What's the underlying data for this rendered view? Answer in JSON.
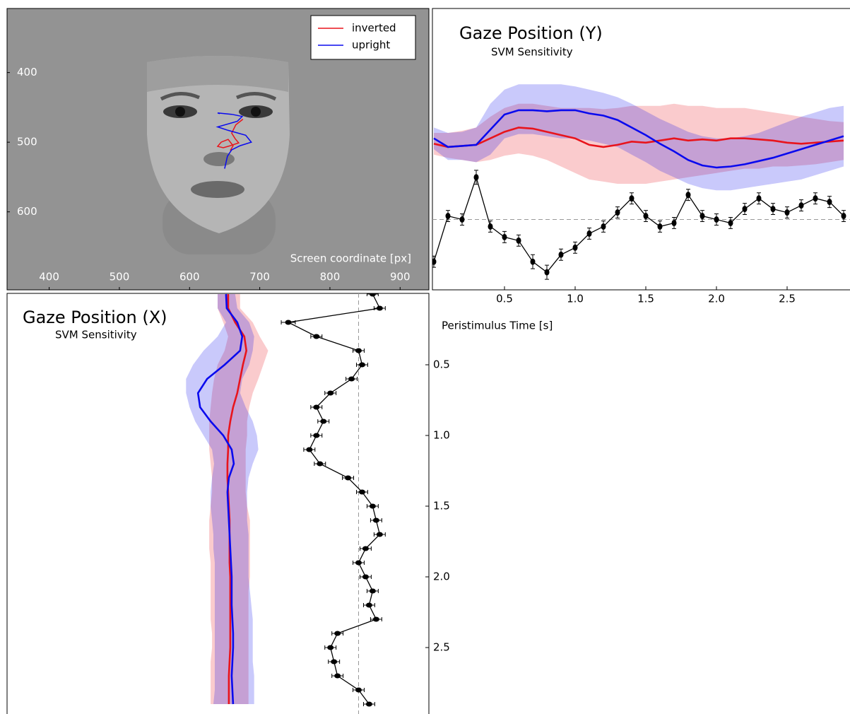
{
  "chart_data": [
    {
      "type": "line",
      "x_label": "Screen coordinate [px]",
      "xlim": [
        340,
        941
      ],
      "ylim": [
        712,
        308
      ],
      "xticks": [
        400,
        500,
        600,
        700,
        800,
        900
      ],
      "yticks": [
        400,
        500,
        600
      ],
      "legend": "upper right",
      "series": [
        {
          "name": "inverted",
          "color": "#e8141c",
          "x": [
            676,
            666,
            660,
            665,
            670,
            658,
            648,
            640,
            645,
            655,
            662,
            658
          ],
          "values": [
            467,
            475,
            487,
            495,
            501,
            505,
            508,
            506,
            500,
            496,
            505,
            512
          ]
        },
        {
          "name": "upright",
          "color": "#0a0aee",
          "x": [
            643,
            640,
            660,
            675,
            668,
            640,
            655,
            680,
            688,
            672,
            660,
            654,
            650
          ],
          "values": [
            459,
            458,
            460,
            463,
            470,
            478,
            483,
            490,
            500,
            505,
            511,
            520,
            538
          ]
        }
      ]
    },
    {
      "type": "line",
      "title": "Gaze Position (Y)",
      "subtitle": "SVM Sensitivity",
      "x_label": "Peristimulus Time [s]",
      "x": [
        0,
        0.1,
        0.2,
        0.3,
        0.4,
        0.5,
        0.6,
        0.7,
        0.8,
        0.9,
        1.0,
        1.1,
        1.2,
        1.3,
        1.4,
        1.5,
        1.6,
        1.7,
        1.8,
        1.9,
        2.0,
        2.1,
        2.2,
        2.3,
        2.4,
        2.5,
        2.6,
        2.7,
        2.8,
        2.9
      ],
      "xlim": [
        0,
        2.95
      ],
      "xticks": [
        0.5,
        {
          "value": 1,
          "label": "1.0"
        },
        1.5,
        {
          "value": 2,
          "label": "2.0"
        },
        2.5
      ],
      "ylim": [
        640,
        380
      ],
      "y2lim": [
        -1,
        3
      ],
      "reference_line": 0,
      "series": [
        {
          "color": "#e8141c",
          "values": [
            505,
            508,
            507,
            506,
            500,
            494,
            490,
            491,
            494,
            497,
            500,
            506,
            508,
            506,
            503,
            504,
            502,
            500,
            502,
            501,
            502,
            500,
            500,
            501,
            502,
            504,
            505,
            504,
            503,
            502
          ],
          "band_low": [
            495,
            495,
            493,
            490,
            480,
            472,
            468,
            468,
            470,
            472,
            472,
            472,
            473,
            472,
            470,
            470,
            470,
            468,
            470,
            470,
            472,
            472,
            472,
            474,
            476,
            478,
            480,
            482,
            484,
            485
          ],
          "band_high": [
            515,
            518,
            520,
            522,
            520,
            516,
            514,
            516,
            520,
            526,
            532,
            538,
            540,
            542,
            542,
            542,
            540,
            538,
            536,
            534,
            532,
            530,
            528,
            528,
            526,
            526,
            525,
            524,
            522,
            520
          ]
        },
        {
          "color": "#0a0aee",
          "values": [
            500,
            508,
            507,
            506,
            492,
            478,
            474,
            474,
            475,
            474,
            474,
            477,
            479,
            483,
            490,
            497,
            505,
            512,
            520,
            525,
            527,
            526,
            524,
            521,
            518,
            514,
            510,
            506,
            502,
            498
          ],
          "band_low": [
            490,
            495,
            494,
            490,
            468,
            455,
            450,
            450,
            450,
            450,
            452,
            455,
            458,
            462,
            468,
            475,
            482,
            488,
            494,
            498,
            500,
            500,
            498,
            495,
            490,
            485,
            480,
            476,
            472,
            470
          ],
          "band_high": [
            510,
            520,
            520,
            522,
            515,
            500,
            496,
            496,
            498,
            500,
            500,
            502,
            505,
            508,
            515,
            522,
            530,
            536,
            542,
            546,
            548,
            548,
            546,
            544,
            542,
            540,
            538,
            534,
            530,
            526
          ]
        },
        {
          "color": "#000000",
          "axis": "y2",
          "values": [
            -0.6,
            0.05,
            0.0,
            0.6,
            -0.1,
            -0.25,
            -0.3,
            -0.6,
            -0.75,
            -0.5,
            -0.4,
            -0.2,
            -0.1,
            0.1,
            0.3,
            0.05,
            -0.1,
            -0.05,
            0.35,
            0.05,
            0.0,
            -0.05,
            0.15,
            0.3,
            0.15,
            0.1,
            0.2,
            0.3,
            0.25,
            0.05
          ],
          "errors": [
            0.08,
            0.08,
            0.08,
            0.1,
            0.08,
            0.08,
            0.08,
            0.1,
            0.1,
            0.08,
            0.08,
            0.08,
            0.08,
            0.08,
            0.08,
            0.08,
            0.08,
            0.08,
            0.08,
            0.08,
            0.08,
            0.08,
            0.08,
            0.08,
            0.08,
            0.08,
            0.08,
            0.08,
            0.08,
            0.08
          ]
        }
      ]
    },
    {
      "type": "line",
      "orientation": "vertical",
      "title": "Gaze Position (X)",
      "subtitle": "SVM Sensitivity",
      "y": [
        0,
        0.1,
        0.2,
        0.3,
        0.4,
        0.5,
        0.6,
        0.7,
        0.8,
        0.9,
        1.0,
        1.1,
        1.2,
        1.3,
        1.4,
        1.5,
        1.6,
        1.7,
        1.8,
        1.9,
        2.0,
        2.1,
        2.2,
        2.3,
        2.4,
        2.5,
        2.6,
        2.7,
        2.8,
        2.9
      ],
      "ylim": [
        0,
        2.97
      ],
      "yticks": [
        0.5,
        {
          "value": 1,
          "label": "1.0"
        },
        1.5,
        {
          "value": 2,
          "label": "2.0"
        },
        2.5
      ],
      "xlim": [
        340,
        941
      ],
      "x2lim": [
        -5,
        1
      ],
      "reference_line": 0,
      "series": [
        {
          "color": "#e8141c",
          "values": [
            655,
            655,
            665,
            678,
            681,
            676,
            672,
            668,
            662,
            658,
            655,
            655,
            654,
            654,
            655,
            656,
            657,
            657,
            657,
            657,
            658,
            658,
            658,
            658,
            658,
            658,
            657,
            656,
            656,
            656
          ],
          "band_low": [
            640,
            640,
            648,
            655,
            650,
            640,
            635,
            632,
            630,
            628,
            628,
            628,
            630,
            632,
            632,
            630,
            628,
            628,
            628,
            630,
            630,
            630,
            630,
            630,
            632,
            632,
            630,
            630,
            630,
            630
          ],
          "band_high": [
            672,
            672,
            690,
            700,
            712,
            705,
            698,
            690,
            685,
            682,
            682,
            680,
            680,
            680,
            680,
            682,
            686,
            686,
            686,
            686,
            686,
            684,
            684,
            684,
            684,
            684,
            684,
            684,
            684,
            684
          ]
        },
        {
          "color": "#0a0aee",
          "values": [
            652,
            653,
            668,
            675,
            672,
            650,
            625,
            612,
            615,
            630,
            648,
            660,
            663,
            656,
            654,
            655,
            656,
            657,
            658,
            659,
            660,
            660,
            660,
            661,
            662,
            662,
            661,
            660,
            661,
            662
          ],
          "band_low": [
            640,
            640,
            652,
            640,
            620,
            605,
            595,
            595,
            600,
            608,
            620,
            632,
            635,
            632,
            630,
            630,
            632,
            634,
            634,
            636,
            636,
            636,
            636,
            636,
            636,
            636,
            636,
            636,
            636,
            634
          ],
          "band_high": [
            665,
            668,
            685,
            692,
            690,
            685,
            675,
            672,
            680,
            690,
            696,
            698,
            690,
            684,
            682,
            682,
            682,
            684,
            684,
            684,
            684,
            686,
            688,
            690,
            690,
            690,
            690,
            692,
            692,
            692
          ]
        },
        {
          "color": "#000000",
          "axis": "x2",
          "values": [
            0.2,
            0.3,
            -1.0,
            -0.6,
            0.0,
            0.05,
            -0.1,
            -0.4,
            -0.6,
            -0.5,
            -0.6,
            -0.7,
            -0.55,
            -0.15,
            0.05,
            0.2,
            0.25,
            0.3,
            0.1,
            0.0,
            0.1,
            0.2,
            0.15,
            0.25,
            -0.3,
            -0.4,
            -0.35,
            -0.3,
            0.0,
            0.15
          ],
          "errors": [
            0.08,
            0.08,
            0.1,
            0.08,
            0.08,
            0.08,
            0.08,
            0.08,
            0.08,
            0.08,
            0.08,
            0.08,
            0.08,
            0.08,
            0.08,
            0.08,
            0.08,
            0.08,
            0.08,
            0.08,
            0.08,
            0.08,
            0.08,
            0.08,
            0.08,
            0.08,
            0.08,
            0.08,
            0.08,
            0.08
          ]
        }
      ]
    }
  ]
}
